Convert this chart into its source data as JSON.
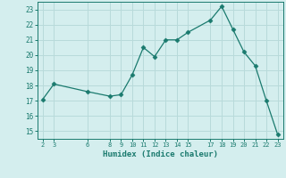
{
  "x": [
    2,
    3,
    6,
    8,
    9,
    10,
    11,
    12,
    13,
    14,
    15,
    17,
    18,
    19,
    20,
    21,
    22,
    23
  ],
  "y": [
    17.1,
    18.1,
    17.6,
    17.3,
    17.4,
    18.7,
    20.5,
    19.9,
    21.0,
    21.0,
    21.5,
    22.3,
    23.2,
    21.7,
    20.2,
    19.3,
    17.0,
    14.8
  ],
  "xticks": [
    2,
    3,
    6,
    8,
    9,
    10,
    11,
    12,
    13,
    14,
    15,
    17,
    18,
    19,
    20,
    21,
    22,
    23
  ],
  "yticks": [
    15,
    16,
    17,
    18,
    19,
    20,
    21,
    22,
    23
  ],
  "xlim": [
    1.5,
    23.5
  ],
  "ylim": [
    14.5,
    23.5
  ],
  "xlabel": "Humidex (Indice chaleur)",
  "line_color": "#1a7a6e",
  "marker": "D",
  "marker_size": 2.5,
  "bg_color": "#d4eeee",
  "grid_color": "#b8dada",
  "tick_color": "#1a7a6e",
  "label_color": "#1a7a6e"
}
